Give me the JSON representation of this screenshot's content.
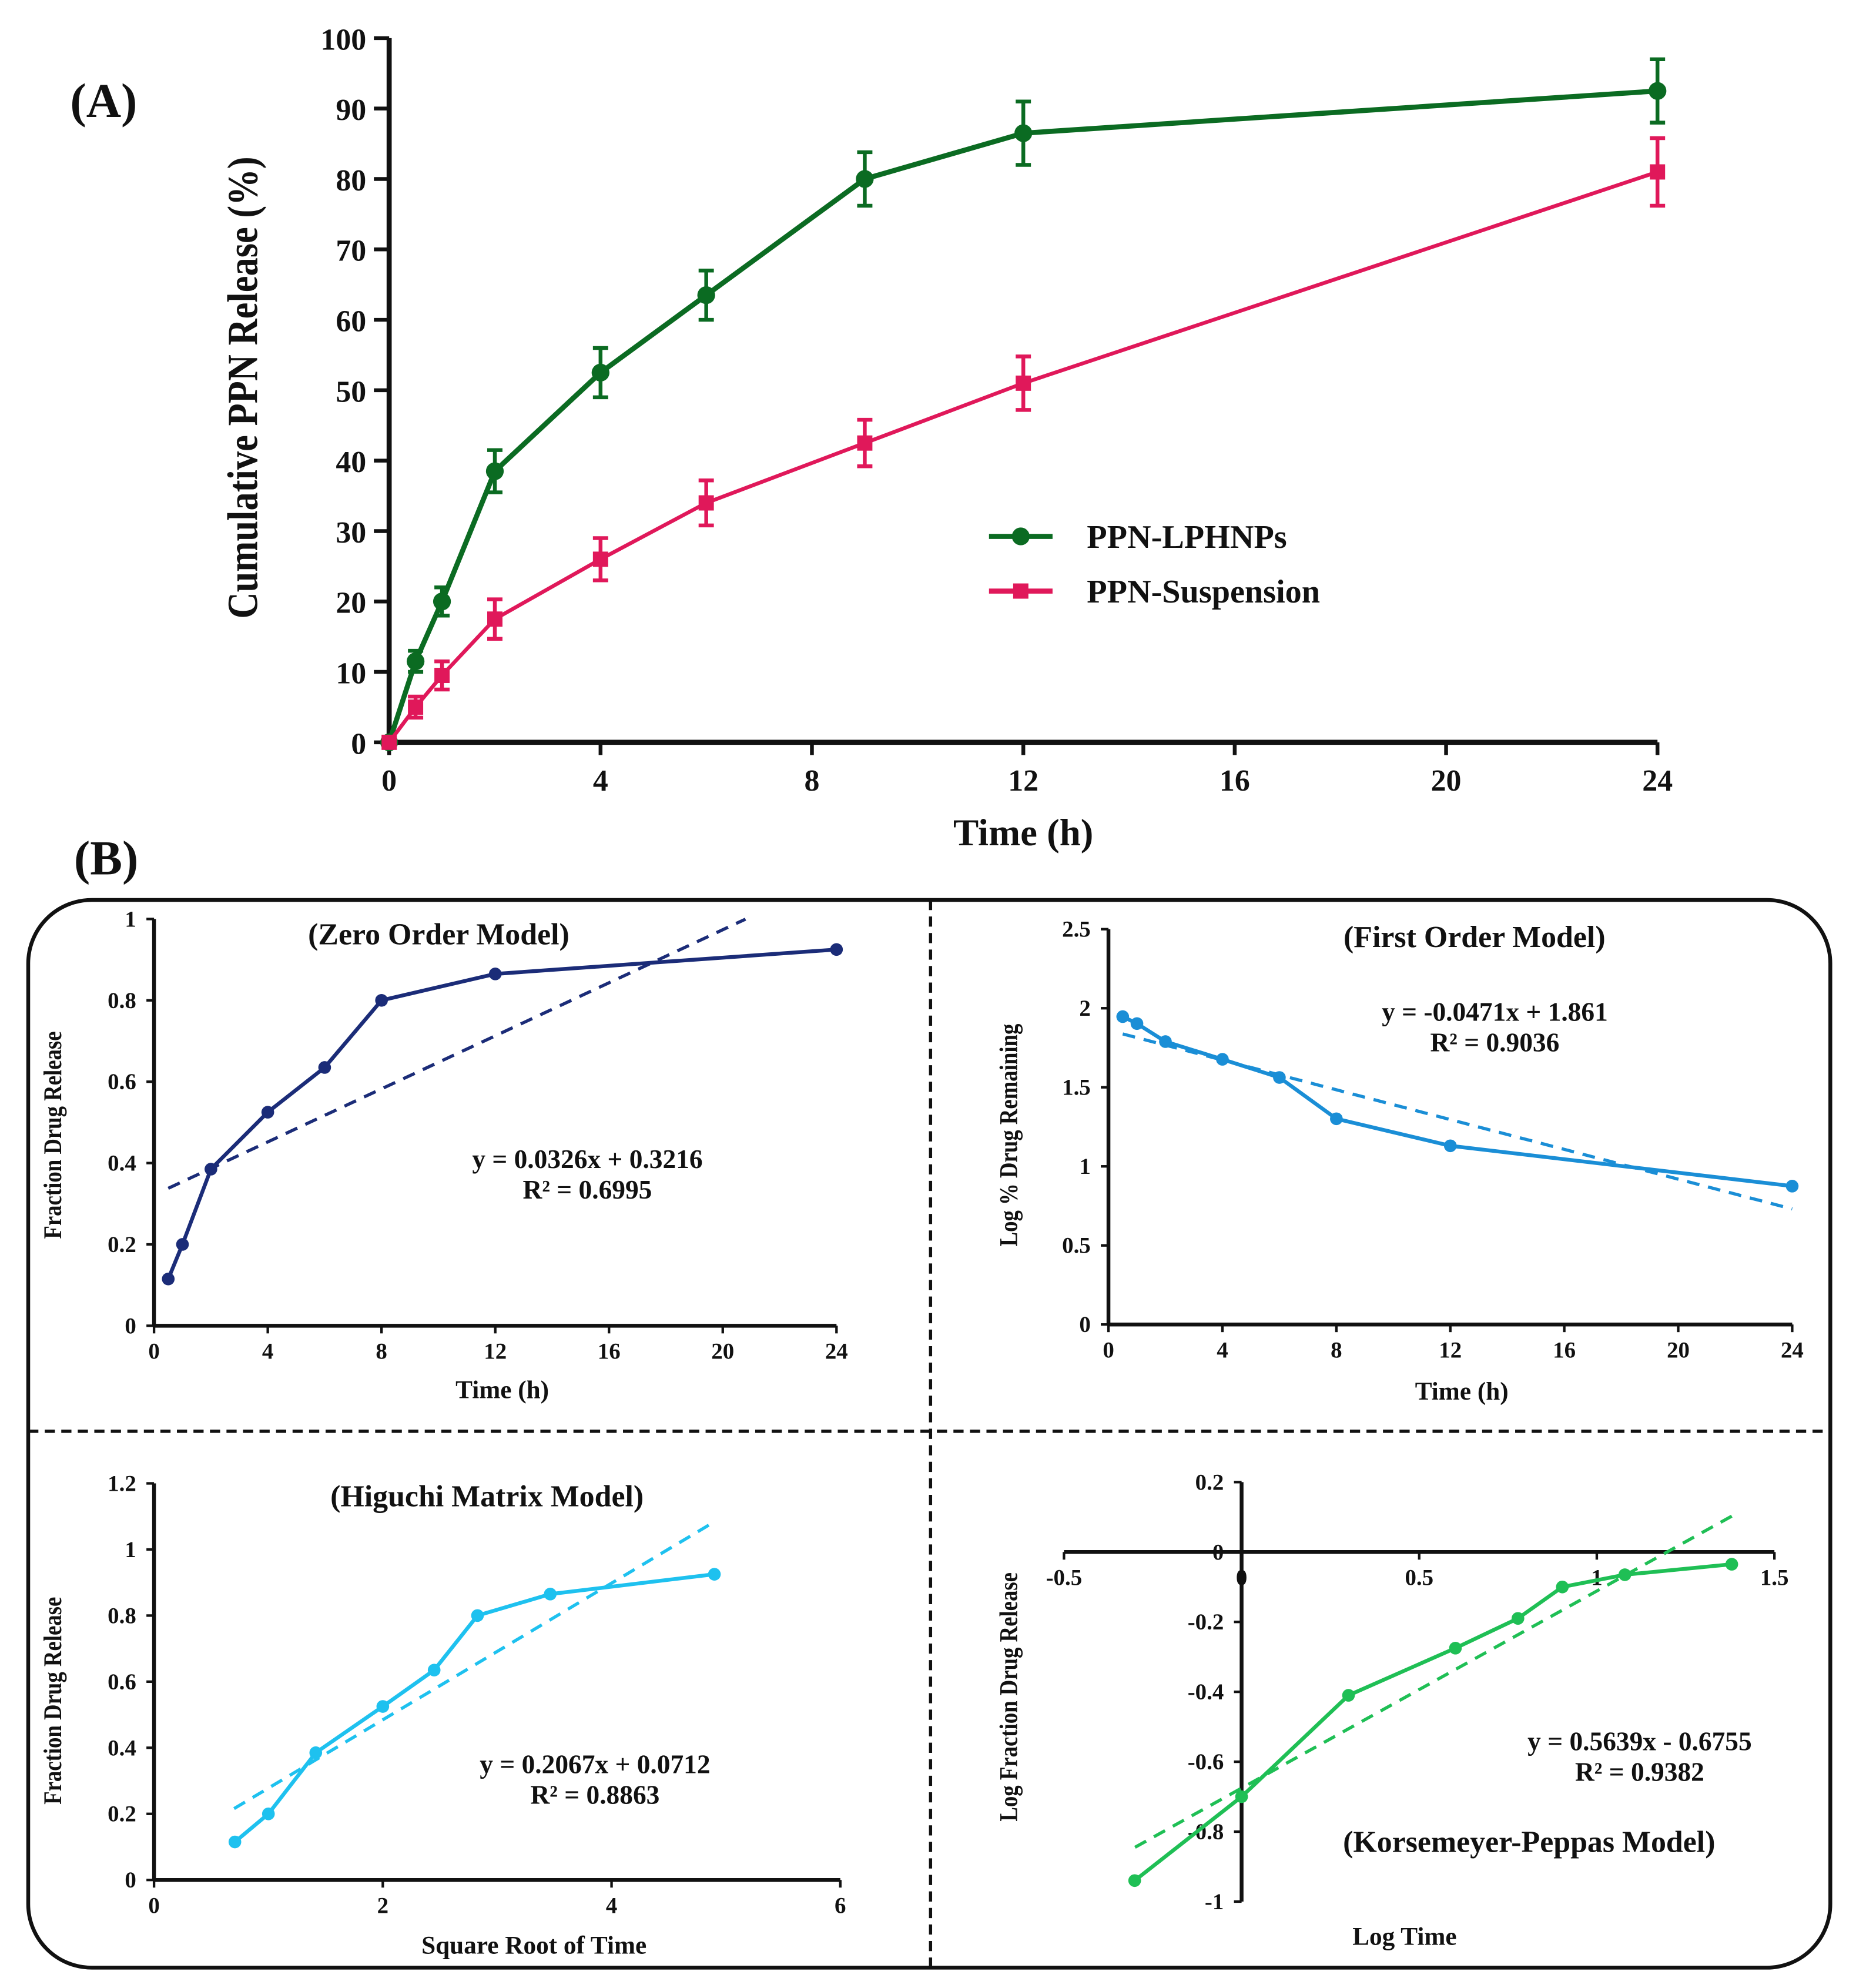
{
  "panel_labels": {
    "a": "(A)",
    "b": "(B)"
  },
  "colors": {
    "lphnps": "#0b6b22",
    "suspension": "#e0185a",
    "zero": "#1b2c78",
    "first": "#1a8ed6",
    "higuchi": "#1ec1ef",
    "kp": "#1fbf55",
    "model_title": "#a32cb0"
  },
  "chart_data": [
    {
      "type": "line",
      "panel": "A",
      "title": "",
      "xlabel": "Time (h)",
      "ylabel": "Cumulative PPN Release (%)",
      "xlim": [
        0,
        24
      ],
      "ylim": [
        0,
        100
      ],
      "xticks": [
        "0",
        "4",
        "8",
        "12",
        "16",
        "20",
        "24"
      ],
      "yticks": [
        "0",
        "10",
        "20",
        "30",
        "40",
        "50",
        "60",
        "70",
        "80",
        "90",
        "100"
      ],
      "x": [
        0,
        0.5,
        1,
        2,
        4,
        6,
        9,
        12,
        24
      ],
      "legend_position": "center-right",
      "series": [
        {
          "name": "PPN-LPHNPs",
          "marker": "circle",
          "values": [
            0,
            11.5,
            20,
            38.5,
            52.5,
            63.5,
            80,
            86.5,
            92.5
          ],
          "errors": [
            0,
            1.5,
            2,
            3,
            3.5,
            3.5,
            3.8,
            4.5,
            4.5
          ]
        },
        {
          "name": "PPN-Suspension",
          "marker": "square",
          "values": [
            0,
            5,
            9.5,
            17.5,
            26,
            34,
            42.5,
            51,
            81
          ],
          "errors": [
            0,
            1.5,
            2,
            2.8,
            3,
            3.2,
            3.3,
            3.8,
            4.8
          ]
        }
      ]
    },
    {
      "type": "line",
      "panel": "B-zero",
      "title": "(Zero Order Model)",
      "xlabel": "Time (h)",
      "ylabel": "Fraction Drug Release",
      "xlim": [
        0,
        24
      ],
      "ylim": [
        0,
        1
      ],
      "xticks": [
        "0",
        "4",
        "8",
        "12",
        "16",
        "20",
        "24"
      ],
      "yticks": [
        "0",
        "0.2",
        "0.4",
        "0.6",
        "0.8",
        "1"
      ],
      "x": [
        0.5,
        1,
        2,
        4,
        6,
        8,
        12,
        24
      ],
      "values": [
        0.115,
        0.2,
        0.385,
        0.525,
        0.635,
        0.8,
        0.865,
        0.925
      ],
      "fit": {
        "slope": 0.0326,
        "intercept": 0.3216,
        "x_range": [
          0.5,
          20.8
        ]
      },
      "equation": "y = 0.0326x + 0.3216",
      "r2": "R² = 0.6995"
    },
    {
      "type": "line",
      "panel": "B-first",
      "title": "(First Order Model)",
      "xlabel": "Time (h)",
      "ylabel": "Log % Drug Remaining",
      "xlim": [
        0,
        24
      ],
      "ylim": [
        0,
        2.5
      ],
      "xticks": [
        "0",
        "4",
        "8",
        "12",
        "16",
        "20",
        "24"
      ],
      "yticks": [
        "0",
        "0.5",
        "1",
        "1.5",
        "2",
        "2.5"
      ],
      "x": [
        0.5,
        1,
        2,
        4,
        6,
        8,
        12,
        24
      ],
      "values": [
        1.947,
        1.903,
        1.789,
        1.677,
        1.562,
        1.301,
        1.13,
        0.875
      ],
      "fit": {
        "slope": -0.0471,
        "intercept": 1.861,
        "x_range": [
          0.5,
          24
        ]
      },
      "equation": "y = -0.0471x + 1.861",
      "r2": "R² = 0.9036"
    },
    {
      "type": "line",
      "panel": "B-higuchi",
      "title": "(Higuchi Matrix Model)",
      "xlabel": "Square  Root of Time",
      "ylabel": "Fraction  Drug Release",
      "xlim": [
        0,
        6
      ],
      "ylim": [
        0,
        1.2
      ],
      "xticks": [
        "0",
        "2",
        "4",
        "6"
      ],
      "yticks": [
        "0",
        "0.2",
        "0.4",
        "0.6",
        "0.8",
        "1",
        "1.2"
      ],
      "x": [
        0.707,
        1,
        1.414,
        2,
        2.449,
        2.828,
        3.464,
        4.899
      ],
      "values": [
        0.115,
        0.2,
        0.385,
        0.525,
        0.635,
        0.8,
        0.865,
        0.925
      ],
      "fit": {
        "slope": 0.2067,
        "intercept": 0.0712,
        "x_range": [
          0.7,
          4.9
        ]
      },
      "equation": "y = 0.2067x + 0.0712",
      "r2": "R² = 0.8863"
    },
    {
      "type": "line",
      "panel": "B-kp",
      "title": "(Korsemeyer-Peppas Model)",
      "xlabel": "Log Time",
      "ylabel": "Log Fraction  Drug Release",
      "xlim": [
        -0.5,
        1.5
      ],
      "ylim": [
        -1,
        0.2
      ],
      "xticks": [
        "-0.5",
        "0",
        "0.5",
        "1",
        "1.5"
      ],
      "yticks": [
        "-1",
        "-0.8",
        "-0.6",
        "-0.4",
        "-0.2",
        "0",
        "0.2"
      ],
      "x": [
        -0.301,
        0,
        0.301,
        0.602,
        0.778,
        0.903,
        1.079,
        1.38
      ],
      "values": [
        -0.94,
        -0.7,
        -0.41,
        -0.275,
        -0.19,
        -0.1,
        -0.065,
        -0.035
      ],
      "fit": {
        "slope": 0.5639,
        "intercept": -0.6755,
        "x_range": [
          -0.3,
          1.38
        ]
      },
      "equation": "y = 0.5639x - 0.6755",
      "r2": "R² = 0.9382"
    }
  ]
}
